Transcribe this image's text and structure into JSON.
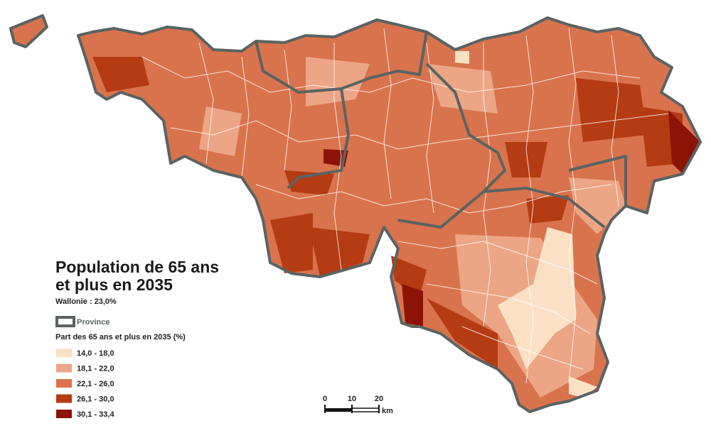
{
  "title_lines": [
    "Population de 65 ans",
    "et plus en 2035"
  ],
  "subtitle": "Wallonie :  23,0%",
  "province_legend": "Province",
  "legend": {
    "title": "Part des 65 ans et plus en 2035 (%)",
    "items": [
      {
        "label": "14,0 - 18,0",
        "color": "#fbe0c6"
      },
      {
        "label": "18,1 - 22,0",
        "color": "#eca685"
      },
      {
        "label": "22,1 - 26,0",
        "color": "#d9734d"
      },
      {
        "label": "26,1 - 30,0",
        "color": "#b43b12"
      },
      {
        "label": "30,1 - 33,4",
        "color": "#8b1406"
      }
    ]
  },
  "scale_bar": {
    "ticks": [
      0,
      10,
      20
    ],
    "unit": "km"
  }
}
